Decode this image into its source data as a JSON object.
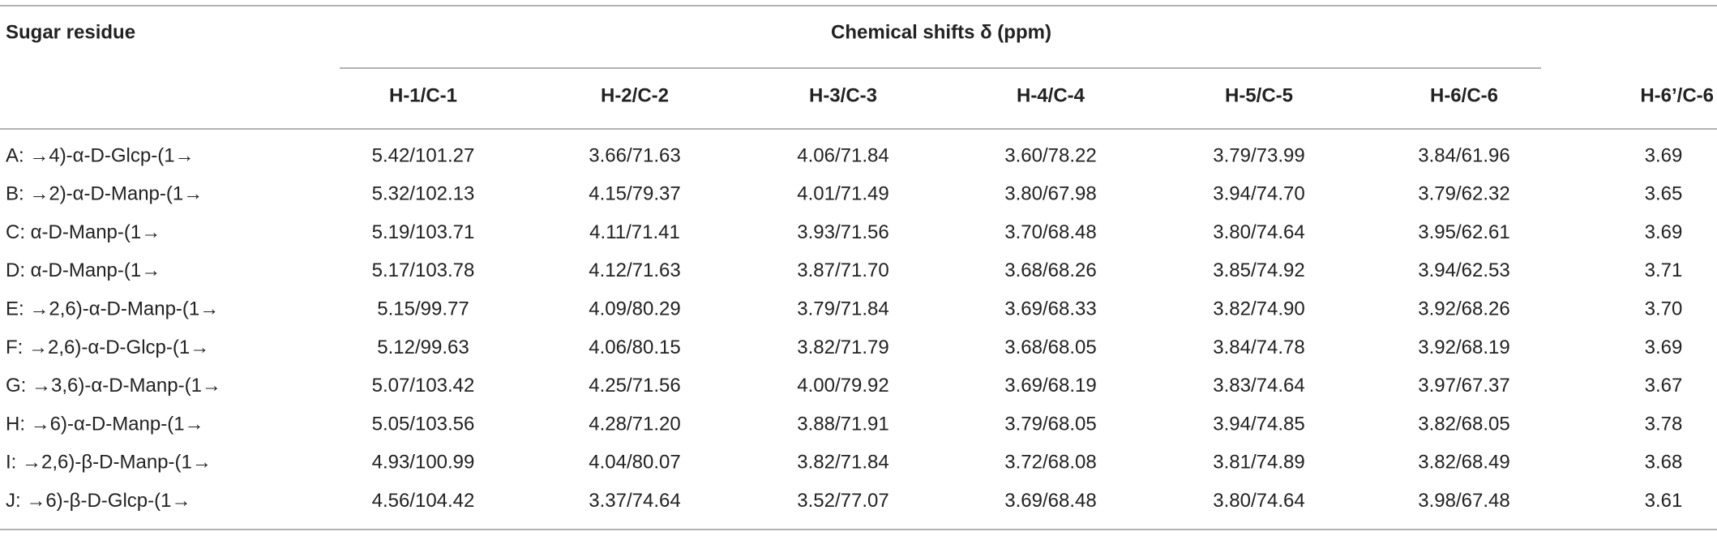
{
  "table": {
    "stub_header": "Sugar residue",
    "group_header": "Chemical shifts δ (ppm)",
    "columns": [
      "H-1/C-1",
      "H-2/C-2",
      "H-3/C-3",
      "H-4/C-4",
      "H-5/C-5",
      "H-6/C-6",
      "H-6’/C-6"
    ],
    "rows": [
      {
        "label": "A: →4)-α-D-Glcp-(1→",
        "cells": [
          "5.42/101.27",
          "3.66/71.63",
          "4.06/71.84",
          "3.60/78.22",
          "3.79/73.99",
          "3.84/61.96",
          "3.69"
        ]
      },
      {
        "label": "B: →2)-α-D-Manp-(1→",
        "cells": [
          "5.32/102.13",
          "4.15/79.37",
          "4.01/71.49",
          "3.80/67.98",
          "3.94/74.70",
          "3.79/62.32",
          "3.65"
        ]
      },
      {
        "label": "C: α-D-Manp-(1→",
        "cells": [
          "5.19/103.71",
          "4.11/71.41",
          "3.93/71.56",
          "3.70/68.48",
          "3.80/74.64",
          "3.95/62.61",
          "3.69"
        ]
      },
      {
        "label": "D: α-D-Manp-(1→",
        "cells": [
          "5.17/103.78",
          "4.12/71.63",
          "3.87/71.70",
          "3.68/68.26",
          "3.85/74.92",
          "3.94/62.53",
          "3.71"
        ]
      },
      {
        "label": "E: →2,6)-α-D-Manp-(1→",
        "cells": [
          "5.15/99.77",
          "4.09/80.29",
          "3.79/71.84",
          "3.69/68.33",
          "3.82/74.90",
          "3.92/68.26",
          "3.70"
        ]
      },
      {
        "label": "F: →2,6)-α-D-Glcp-(1→",
        "cells": [
          "5.12/99.63",
          "4.06/80.15",
          "3.82/71.79",
          "3.68/68.05",
          "3.84/74.78",
          "3.92/68.19",
          "3.69"
        ]
      },
      {
        "label": "G: →3,6)-α-D-Manp-(1→",
        "cells": [
          "5.07/103.42",
          "4.25/71.56",
          "4.00/79.92",
          "3.69/68.19",
          "3.83/74.64",
          "3.97/67.37",
          "3.67"
        ]
      },
      {
        "label": "H: →6)-α-D-Manp-(1→",
        "cells": [
          "5.05/103.56",
          "4.28/71.20",
          "3.88/71.91",
          "3.79/68.05",
          "3.94/74.85",
          "3.82/68.05",
          "3.78"
        ]
      },
      {
        "label": "I: →2,6)-β-D-Manp-(1→",
        "cells": [
          "4.93/100.99",
          "4.04/80.07",
          "3.82/71.84",
          "3.72/68.08",
          "3.81/74.89",
          "3.82/68.49",
          "3.68"
        ]
      },
      {
        "label": "J: →6)-β-D-Glcp-(1→",
        "cells": [
          "4.56/104.42",
          "3.37/74.64",
          "3.52/77.07",
          "3.69/68.48",
          "3.80/74.64",
          "3.98/67.48",
          "3.61"
        ]
      }
    ]
  }
}
